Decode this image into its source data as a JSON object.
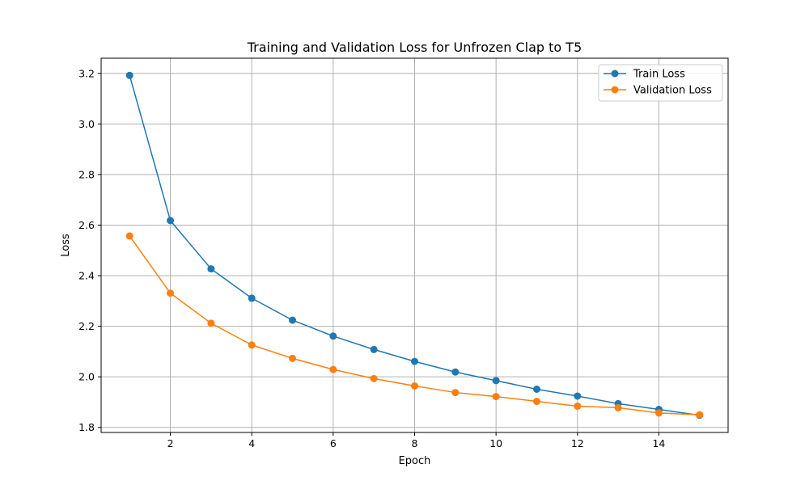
{
  "chart_data": {
    "type": "line",
    "title": "Training and Validation Loss for Unfrozen Clap to T5",
    "xlabel": "Epoch",
    "ylabel": "Loss",
    "x": [
      1,
      2,
      3,
      4,
      5,
      6,
      7,
      8,
      9,
      10,
      11,
      12,
      13,
      14,
      15
    ],
    "xlim": [
      0.3,
      15.7
    ],
    "ylim": [
      1.78,
      3.26
    ],
    "xticks": [
      2,
      4,
      6,
      8,
      10,
      12,
      14
    ],
    "yticks": [
      1.8,
      2.0,
      2.2,
      2.4,
      2.6,
      2.8,
      3.0,
      3.2
    ],
    "ytick_labels": [
      "1.8",
      "2.0",
      "2.2",
      "2.4",
      "2.6",
      "2.8",
      "3.0",
      "3.2"
    ],
    "grid": true,
    "legend_position": "top-right",
    "series": [
      {
        "name": "Train Loss",
        "color": "#1f77b4",
        "marker": "circle",
        "values": [
          3.192,
          2.618,
          2.427,
          2.311,
          2.224,
          2.161,
          2.108,
          2.061,
          2.019,
          1.985,
          1.951,
          1.924,
          1.894,
          1.871,
          1.848
        ]
      },
      {
        "name": "Validation Loss",
        "color": "#ff7f0e",
        "marker": "circle",
        "values": [
          2.557,
          2.331,
          2.212,
          2.126,
          2.073,
          2.029,
          1.993,
          1.964,
          1.938,
          1.922,
          1.903,
          1.884,
          1.878,
          1.857,
          1.85
        ]
      }
    ]
  }
}
